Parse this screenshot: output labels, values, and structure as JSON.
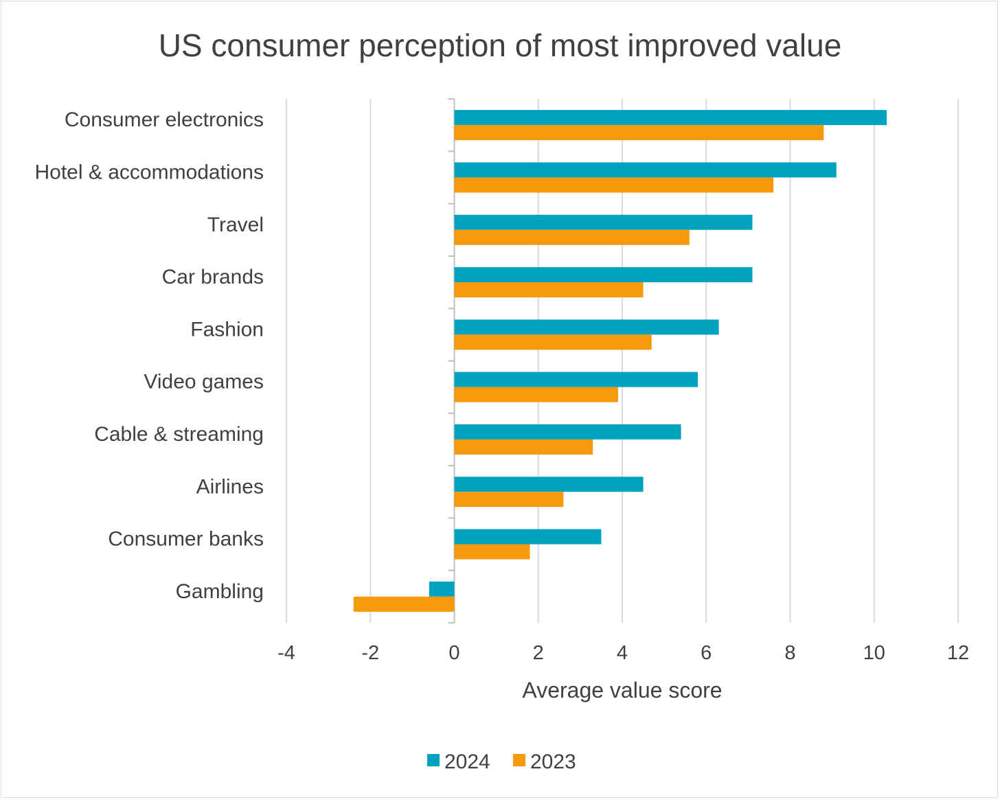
{
  "chart_data": {
    "type": "bar",
    "orientation": "horizontal",
    "title": "US consumer perception of most improved value",
    "xlabel": "Average value score",
    "ylabel": "",
    "xlim": [
      -4,
      12
    ],
    "xticks": [
      "-4",
      "-2",
      "0",
      "2",
      "4",
      "6",
      "8",
      "10",
      "12"
    ],
    "grid": "vertical",
    "legend_position": "bottom",
    "categories": [
      "Consumer electronics",
      "Hotel & accommodations",
      "Travel",
      "Car brands",
      "Fashion",
      "Video games",
      "Cable & streaming",
      "Airlines",
      "Consumer banks",
      "Gambling"
    ],
    "series": [
      {
        "name": "2024",
        "color": "#00a3bf",
        "values": [
          10.3,
          9.1,
          7.1,
          7.1,
          6.3,
          5.8,
          5.4,
          4.5,
          3.5,
          -0.6
        ]
      },
      {
        "name": "2023",
        "color": "#f7990c",
        "values": [
          8.8,
          7.6,
          5.6,
          4.5,
          4.7,
          3.9,
          3.3,
          2.6,
          1.8,
          -2.4
        ]
      }
    ]
  }
}
